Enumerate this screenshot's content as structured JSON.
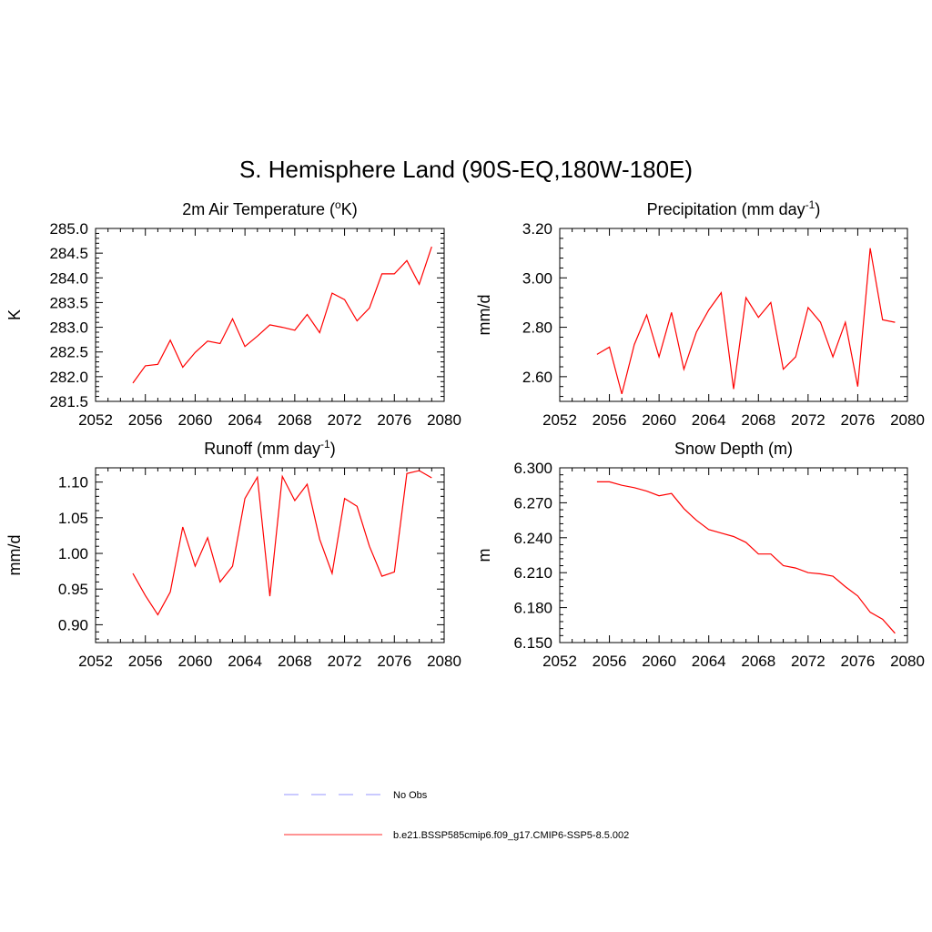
{
  "title": "S. Hemisphere Land (90S-EQ,180W-180E)",
  "legend": [
    {
      "label": "No Obs",
      "color": "#aaaaff",
      "dash": true
    },
    {
      "label": "b.e21.BSSP585cmip6.f09_g17.CMIP6-SSP5-8.5.002",
      "color": "#ff5555",
      "dash": false
    }
  ],
  "chart_data": [
    {
      "type": "line",
      "title_main": "2m Air Temperature (",
      "title_sup": "o",
      "title_end": "K)",
      "ylabel": "K",
      "xlim": [
        2052,
        2080
      ],
      "ylim": [
        281.5,
        285.0
      ],
      "xticks": [
        "2052",
        "2056",
        "2060",
        "2064",
        "2068",
        "2072",
        "2076",
        "2080"
      ],
      "yticks": [
        "281.5",
        "282.0",
        "282.5",
        "283.0",
        "283.5",
        "284.0",
        "284.5",
        "285.0"
      ],
      "color": "#ff0000",
      "x": [
        2055,
        2056,
        2057,
        2058,
        2059,
        2060,
        2061,
        2062,
        2063,
        2064,
        2065,
        2066,
        2067,
        2068,
        2069,
        2070,
        2071,
        2072,
        2073,
        2074,
        2075,
        2076,
        2077,
        2078,
        2079
      ],
      "y": [
        281.87,
        282.22,
        282.25,
        282.74,
        282.19,
        282.49,
        282.72,
        282.67,
        283.17,
        282.61,
        282.82,
        283.05,
        283.0,
        282.94,
        283.26,
        282.89,
        283.69,
        283.56,
        283.13,
        283.39,
        284.08,
        284.08,
        284.35,
        283.87,
        284.63
      ]
    },
    {
      "type": "line",
      "title_main": "Precipitation (mm day",
      "title_sup": "-1",
      "title_end": ")",
      "ylabel": "mm/d",
      "xlim": [
        2052,
        2080
      ],
      "ylim": [
        2.5,
        3.2
      ],
      "xticks": [
        "2052",
        "2056",
        "2060",
        "2064",
        "2068",
        "2072",
        "2076",
        "2080"
      ],
      "yticks": [
        "2.60",
        "2.80",
        "3.00",
        "3.20"
      ],
      "ytick_values": [
        2.6,
        2.8,
        3.0,
        3.2
      ],
      "color": "#ff0000",
      "x": [
        2055,
        2056,
        2057,
        2058,
        2059,
        2060,
        2061,
        2062,
        2063,
        2064,
        2065,
        2066,
        2067,
        2068,
        2069,
        2070,
        2071,
        2072,
        2073,
        2074,
        2075,
        2076,
        2077,
        2078,
        2079
      ],
      "y": [
        2.69,
        2.72,
        2.53,
        2.73,
        2.85,
        2.68,
        2.86,
        2.63,
        2.78,
        2.87,
        2.94,
        2.55,
        2.92,
        2.84,
        2.9,
        2.63,
        2.68,
        2.88,
        2.82,
        2.68,
        2.82,
        2.56,
        3.12,
        2.83,
        2.82
      ]
    },
    {
      "type": "line",
      "title_main": "Runoff (mm day",
      "title_sup": "-1",
      "title_end": ")",
      "ylabel": "mm/d",
      "xlim": [
        2052,
        2080
      ],
      "ylim": [
        0.875,
        1.12
      ],
      "xticks": [
        "2052",
        "2056",
        "2060",
        "2064",
        "2068",
        "2072",
        "2076",
        "2080"
      ],
      "yticks": [
        "0.90",
        "0.95",
        "1.00",
        "1.05",
        "1.10"
      ],
      "ytick_values": [
        0.9,
        0.95,
        1.0,
        1.05,
        1.1
      ],
      "color": "#ff0000",
      "x": [
        2055,
        2056,
        2057,
        2058,
        2059,
        2060,
        2061,
        2062,
        2063,
        2064,
        2065,
        2066,
        2067,
        2068,
        2069,
        2070,
        2071,
        2072,
        2073,
        2074,
        2075,
        2076,
        2077,
        2078,
        2079
      ],
      "y": [
        0.972,
        0.941,
        0.914,
        0.946,
        1.037,
        0.982,
        1.022,
        0.96,
        0.982,
        1.077,
        1.107,
        0.94,
        1.108,
        1.074,
        1.097,
        1.02,
        0.972,
        1.077,
        1.066,
        1.01,
        0.968,
        0.974,
        1.112,
        1.116,
        1.106
      ]
    },
    {
      "type": "line",
      "title_main": "Snow Depth (m)",
      "title_sup": "",
      "title_end": "",
      "ylabel": "m",
      "xlim": [
        2052,
        2080
      ],
      "ylim": [
        6.15,
        6.3
      ],
      "xticks": [
        "2052",
        "2056",
        "2060",
        "2064",
        "2068",
        "2072",
        "2076",
        "2080"
      ],
      "yticks": [
        "6.150",
        "6.180",
        "6.210",
        "6.240",
        "6.270",
        "6.300"
      ],
      "ytick_values": [
        6.15,
        6.18,
        6.21,
        6.24,
        6.27,
        6.3
      ],
      "color": "#ff0000",
      "x": [
        2055,
        2056,
        2057,
        2058,
        2059,
        2060,
        2061,
        2062,
        2063,
        2064,
        2065,
        2066,
        2067,
        2068,
        2069,
        2070,
        2071,
        2072,
        2073,
        2074,
        2075,
        2076,
        2077,
        2078,
        2079
      ],
      "y": [
        6.288,
        6.288,
        6.285,
        6.283,
        6.28,
        6.276,
        6.278,
        6.265,
        6.255,
        6.247,
        6.244,
        6.241,
        6.236,
        6.226,
        6.226,
        6.216,
        6.214,
        6.21,
        6.209,
        6.207,
        6.198,
        6.19,
        6.176,
        6.17,
        6.158
      ]
    }
  ]
}
